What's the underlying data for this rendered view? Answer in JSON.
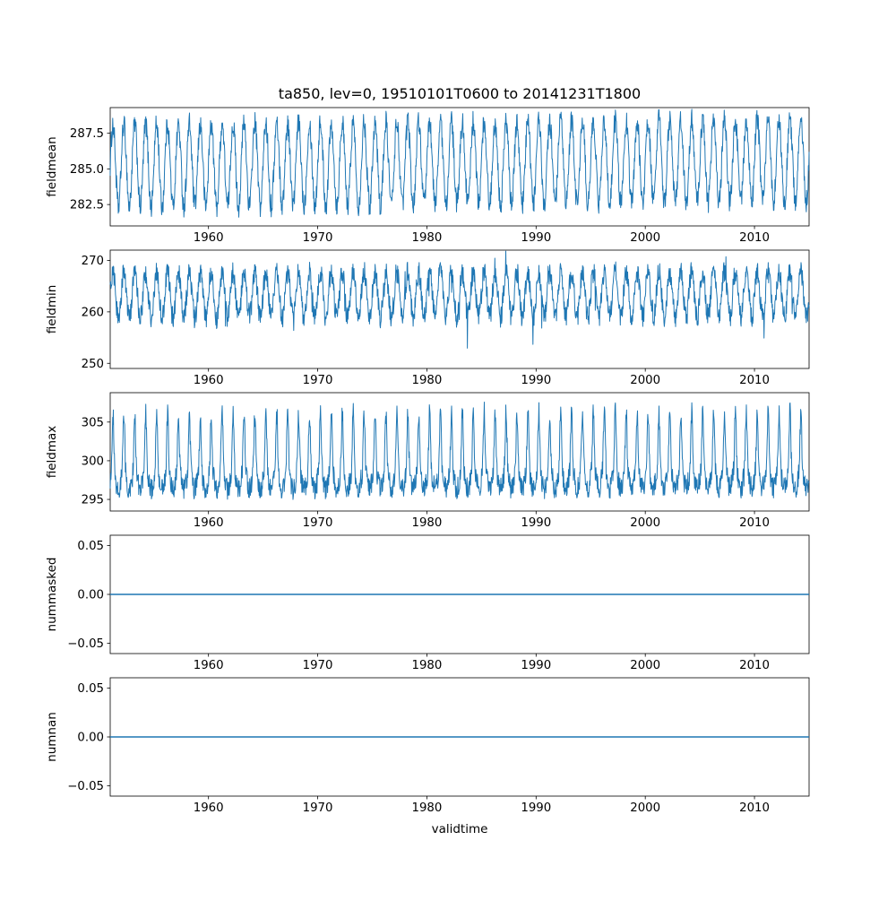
{
  "figure": {
    "title": "ta850, lev=0, 19510101T0600 to 20141231T1800",
    "xlabel": "validtime",
    "line_color": "#1f77b4",
    "background": "#ffffff",
    "x_range": [
      1951.0,
      2015.0
    ],
    "x_ticks": [
      1960,
      1970,
      1980,
      1990,
      2000,
      2010
    ]
  },
  "chart_data": [
    {
      "type": "line",
      "name": "fieldmean",
      "ylabel": "fieldmean",
      "ylim": [
        281.0,
        289.3
      ],
      "yticks": [
        {
          "value": 282.5,
          "label": "282.5"
        },
        {
          "value": 285.0,
          "label": "285.0"
        },
        {
          "value": 287.5,
          "label": "287.5"
        }
      ],
      "pattern": "dense annual seasonal oscillation, 6-hourly samples 1951-2014",
      "summary": {
        "approx_min": 281.5,
        "approx_max": 289.2,
        "approx_mean": 285.3,
        "cycle_period_years": 1
      },
      "gen": {
        "kind": "seasonal",
        "base": 285.2,
        "amp": 2.9,
        "noise": 0.8,
        "trend": 0.006,
        "peak_boost": 0,
        "peak_exp": 1,
        "dip_prob": 0,
        "dip_mag": 0,
        "up_prob": 0,
        "up_mag": 0
      }
    },
    {
      "type": "line",
      "name": "fieldmin",
      "ylabel": "fieldmin",
      "ylim": [
        249.0,
        272.0
      ],
      "yticks": [
        {
          "value": 250,
          "label": "250"
        },
        {
          "value": 260,
          "label": "260"
        },
        {
          "value": 270,
          "label": "270"
        }
      ],
      "pattern": "dense annual seasonal oscillation with occasional deep downward spikes",
      "summary": {
        "approx_min": 250.3,
        "approx_max": 271.5,
        "approx_mean": 263.3,
        "cycle_period_years": 1
      },
      "gen": {
        "kind": "seasonal",
        "base": 263.2,
        "amp": 4.4,
        "noise": 2.1,
        "trend": 0.004,
        "peak_boost": 0,
        "peak_exp": 1,
        "dip_prob": 0.012,
        "dip_mag": 4.0,
        "up_prob": 0.01,
        "up_mag": 2.0
      }
    },
    {
      "type": "line",
      "name": "fieldmax",
      "ylabel": "fieldmax",
      "ylim": [
        293.5,
        308.8
      ],
      "yticks": [
        {
          "value": 295,
          "label": "295"
        },
        {
          "value": 300,
          "label": "300"
        },
        {
          "value": 305,
          "label": "305"
        }
      ],
      "pattern": "dense band near 296-300 with tall upward summer spikes to ~308",
      "summary": {
        "approx_min": 294.0,
        "approx_max": 308.0,
        "approx_mean": 299.0,
        "cycle_period_years": 1
      },
      "gen": {
        "kind": "seasonal",
        "base": 297.6,
        "amp": 1.3,
        "noise": 1.4,
        "trend": 0.004,
        "peak_boost": 7.2,
        "peak_exp": 4,
        "dip_prob": 0,
        "dip_mag": 0,
        "up_prob": 0,
        "up_mag": 0
      }
    },
    {
      "type": "line",
      "name": "nummasked",
      "ylabel": "nummasked",
      "ylim": [
        -0.0605,
        0.0605
      ],
      "yticks": [
        {
          "value": -0.05,
          "label": "−0.05"
        },
        {
          "value": 0.0,
          "label": "0.00"
        },
        {
          "value": 0.05,
          "label": "0.05"
        }
      ],
      "pattern": "constant zero line",
      "summary": {
        "approx_min": 0,
        "approx_max": 0,
        "approx_mean": 0
      },
      "gen": {
        "kind": "flat",
        "value": 0
      }
    },
    {
      "type": "line",
      "name": "numnan",
      "ylabel": "numnan",
      "ylim": [
        -0.0605,
        0.0605
      ],
      "yticks": [
        {
          "value": -0.05,
          "label": "−0.05"
        },
        {
          "value": 0.0,
          "label": "0.00"
        },
        {
          "value": 0.05,
          "label": "0.05"
        }
      ],
      "pattern": "constant zero line",
      "summary": {
        "approx_min": 0,
        "approx_max": 0,
        "approx_mean": 0
      },
      "gen": {
        "kind": "flat",
        "value": 0
      }
    }
  ]
}
